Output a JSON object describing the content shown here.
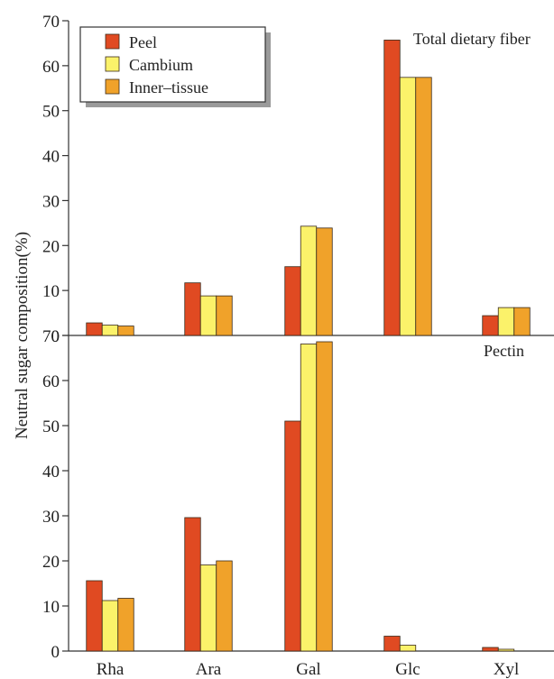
{
  "chart_data": {
    "type": "bar",
    "ylabel": "Neutral sugar composition(%)",
    "categories": [
      "Rha",
      "Ara",
      "Gal",
      "Glc",
      "Xyl"
    ],
    "legend": [
      {
        "name": "Peel",
        "color": "#e04a22"
      },
      {
        "name": "Cambium",
        "color": "#fbf26a"
      },
      {
        "name": "Inner–tissue",
        "color": "#f0a22a"
      }
    ],
    "panels": [
      {
        "title": "Total dietary fiber",
        "ylim": [
          0,
          70
        ],
        "yticks": [
          "0",
          "10",
          "20",
          "30",
          "40",
          "50",
          "60",
          "70"
        ],
        "series": [
          {
            "name": "Peel",
            "values": [
              2.8,
              11.7,
              15.3,
              65.7,
              4.4
            ]
          },
          {
            "name": "Cambium",
            "values": [
              2.3,
              8.8,
              24.3,
              57.4,
              6.2
            ]
          },
          {
            "name": "Inner–tissue",
            "values": [
              2.1,
              8.8,
              23.9,
              57.4,
              6.2
            ]
          }
        ]
      },
      {
        "title": "Pectin",
        "ylim": [
          0,
          70
        ],
        "yticks": [
          "0",
          "10",
          "20",
          "30",
          "40",
          "50",
          "60",
          "70"
        ],
        "series": [
          {
            "name": "Peel",
            "values": [
              15.6,
              29.6,
              51.0,
              3.3,
              0.8
            ]
          },
          {
            "name": "Cambium",
            "values": [
              11.2,
              19.1,
              68.1,
              1.3,
              0.4
            ]
          },
          {
            "name": "Inner–tissue",
            "values": [
              11.7,
              20.0,
              68.6,
              0.0,
              0.0
            ]
          }
        ]
      }
    ]
  }
}
